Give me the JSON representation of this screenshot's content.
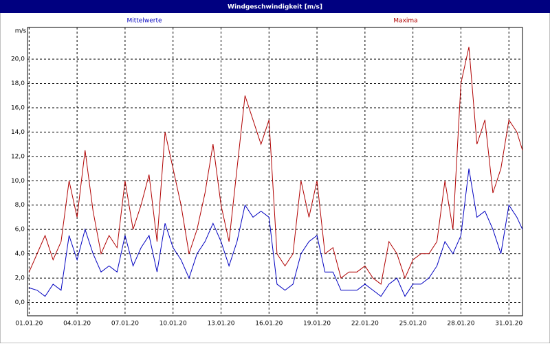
{
  "chart_data": {
    "type": "line",
    "title": "Windgeschwindigkeit [m/s]",
    "ylabel": "m/s",
    "x": [
      0,
      0.5,
      1,
      1.5,
      2,
      2.5,
      3,
      3.5,
      4,
      4.5,
      5,
      5.5,
      6,
      6.5,
      7,
      7.5,
      8,
      8.5,
      9,
      9.5,
      10,
      10.5,
      11,
      11.5,
      12,
      12.5,
      13,
      13.5,
      14,
      14.5,
      15,
      15.5,
      16,
      16.5,
      17,
      17.5,
      18,
      18.5,
      19,
      19.5,
      20,
      20.5,
      21,
      21.5,
      22,
      22.5,
      23,
      23.5,
      24,
      24.5,
      25,
      25.5,
      26,
      26.5,
      27,
      27.5,
      28,
      28.5,
      29,
      29.5,
      30,
      30.5,
      30.85
    ],
    "series": [
      {
        "name": "Mittelwerte",
        "color": "#0000c0",
        "values": [
          1.2,
          1.0,
          0.5,
          1.5,
          1.0,
          5.5,
          3.5,
          6.0,
          4.0,
          2.5,
          3.0,
          2.5,
          5.5,
          3.0,
          4.5,
          5.5,
          2.5,
          6.5,
          4.5,
          3.5,
          2.0,
          4.0,
          5.0,
          6.5,
          5.0,
          3.0,
          5.0,
          8.0,
          7.0,
          7.5,
          7.0,
          1.5,
          1.0,
          1.5,
          4.0,
          5.0,
          5.5,
          2.5,
          2.5,
          1.0,
          1.0,
          1.0,
          1.5,
          1.0,
          0.5,
          1.5,
          2.0,
          0.5,
          1.5,
          1.5,
          2.0,
          3.0,
          5.0,
          4.0,
          5.5,
          11.0,
          7.0,
          7.5,
          6.0,
          4.0,
          8.0,
          7.0,
          6.0
        ]
      },
      {
        "name": "Maxima",
        "color": "#b00000",
        "values": [
          2.5,
          4.0,
          5.5,
          3.5,
          5.0,
          10.0,
          7.0,
          12.5,
          7.5,
          4.0,
          5.5,
          4.5,
          10.0,
          6.0,
          8.0,
          10.5,
          5.0,
          14.0,
          11.0,
          8.0,
          4.0,
          6.0,
          9.0,
          13.0,
          8.0,
          5.0,
          11.0,
          17.0,
          15.0,
          13.0,
          15.0,
          4.0,
          3.0,
          4.0,
          10.0,
          7.0,
          10.0,
          4.0,
          4.5,
          2.0,
          2.5,
          2.5,
          3.0,
          2.0,
          1.5,
          5.0,
          4.0,
          2.0,
          3.5,
          4.0,
          4.0,
          5.0,
          10.0,
          6.0,
          18.0,
          21.0,
          13.0,
          15.0,
          9.0,
          11.0,
          15.0,
          14.0,
          12.5
        ]
      }
    ],
    "xlim": [
      -0.1,
      30.85
    ],
    "xticks": [
      {
        "value": 0,
        "label": "01.01.20"
      },
      {
        "value": 3,
        "label": "04.01.20"
      },
      {
        "value": 6,
        "label": "07.01.20"
      },
      {
        "value": 9,
        "label": "10.01.20"
      },
      {
        "value": 12,
        "label": "13.01.20"
      },
      {
        "value": 15,
        "label": "16.01.20"
      },
      {
        "value": 18,
        "label": "19.01.20"
      },
      {
        "value": 21,
        "label": "22.01.20"
      },
      {
        "value": 24,
        "label": "25.01.20"
      },
      {
        "value": 27,
        "label": "28.01.20"
      },
      {
        "value": 30,
        "label": "31.01.20"
      }
    ],
    "ylim": [
      -1.1,
      22.6
    ],
    "yticks": [
      {
        "value": 0,
        "label": "0,0"
      },
      {
        "value": 2,
        "label": "2,0"
      },
      {
        "value": 4,
        "label": "4,0"
      },
      {
        "value": 6,
        "label": "6,0"
      },
      {
        "value": 8,
        "label": "8,0"
      },
      {
        "value": 10,
        "label": "10,0"
      },
      {
        "value": 12,
        "label": "12,0"
      },
      {
        "value": 14,
        "label": "14,0"
      },
      {
        "value": 16,
        "label": "16,0"
      },
      {
        "value": 18,
        "label": "18,0"
      },
      {
        "value": 20,
        "label": "20,0"
      }
    ],
    "grid": true
  }
}
